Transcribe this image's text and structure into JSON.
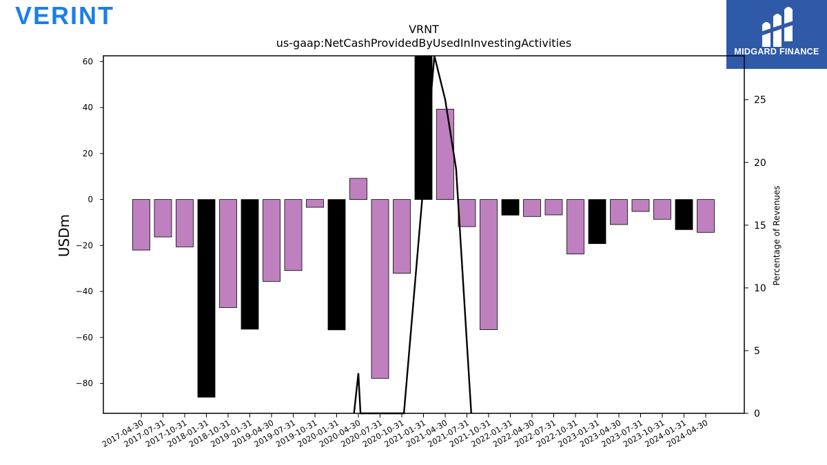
{
  "header": {
    "brand": "VERINT",
    "badge_text": "MIDGARD FINANCE"
  },
  "colors": {
    "brand_blue": "#1a7fe8",
    "badge_bg": "#2e5aa8",
    "bar_regular": "#bf80bf",
    "bar_highlight": "#000000"
  },
  "chart_data": {
    "type": "bar",
    "title": "VRNT",
    "subtitle": "us-gaap:NetCashProvidedByUsedInInvestingActivities",
    "ylabel": "USDm",
    "y2label": "Percentage of Revenues",
    "ylim": [
      -93,
      62.5
    ],
    "y2lim": [
      0,
      28.5
    ],
    "yticks": [
      60,
      40,
      20,
      0,
      -20,
      -40,
      -60,
      -80
    ],
    "y2ticks": [
      0,
      5,
      10,
      15,
      20,
      25
    ],
    "categories": [
      "2017-04-30",
      "2017-07-31",
      "2017-10-31",
      "2018-01-31",
      "2018-10-31",
      "2019-01-31",
      "2019-04-30",
      "2019-07-31",
      "2019-10-31",
      "2020-01-31",
      "2020-04-30",
      "2020-07-31",
      "2020-10-31",
      "2021-01-31",
      "2021-04-30",
      "2021-07-31",
      "2021-10-31",
      "2022-01-31",
      "2022-04-30",
      "2022-07-31",
      "2022-10-31",
      "2023-01-31",
      "2023-04-30",
      "2023-07-31",
      "2023-10-31",
      "2024-01-31",
      "2024-04-30"
    ],
    "values": [
      -22.0,
      -16.3,
      -20.6,
      -86.0,
      -47.0,
      -56.4,
      -35.6,
      -30.9,
      -3.4,
      -56.7,
      9.2,
      -77.8,
      -32.1,
      66.3,
      39.3,
      -11.8,
      -56.6,
      -6.8,
      -7.4,
      -6.7,
      -23.7,
      -19.2,
      -10.9,
      -5.2,
      -8.6,
      -13.1,
      -14.3
    ],
    "highlight_categories": [
      "2018-01-31",
      "2019-01-31",
      "2020-01-31",
      "2021-01-31",
      "2022-01-31",
      "2023-01-31",
      "2024-01-31"
    ],
    "line_series": {
      "name": "Percentage of Revenues",
      "axis": "right",
      "x": [
        9.8,
        10.0,
        10.1,
        12.1,
        13.5,
        14.0,
        14.5,
        15.2
      ],
      "values": [
        0,
        3.2,
        0,
        0,
        28.5,
        25.0,
        19.5,
        0
      ]
    },
    "grid": false,
    "legend": "none"
  }
}
